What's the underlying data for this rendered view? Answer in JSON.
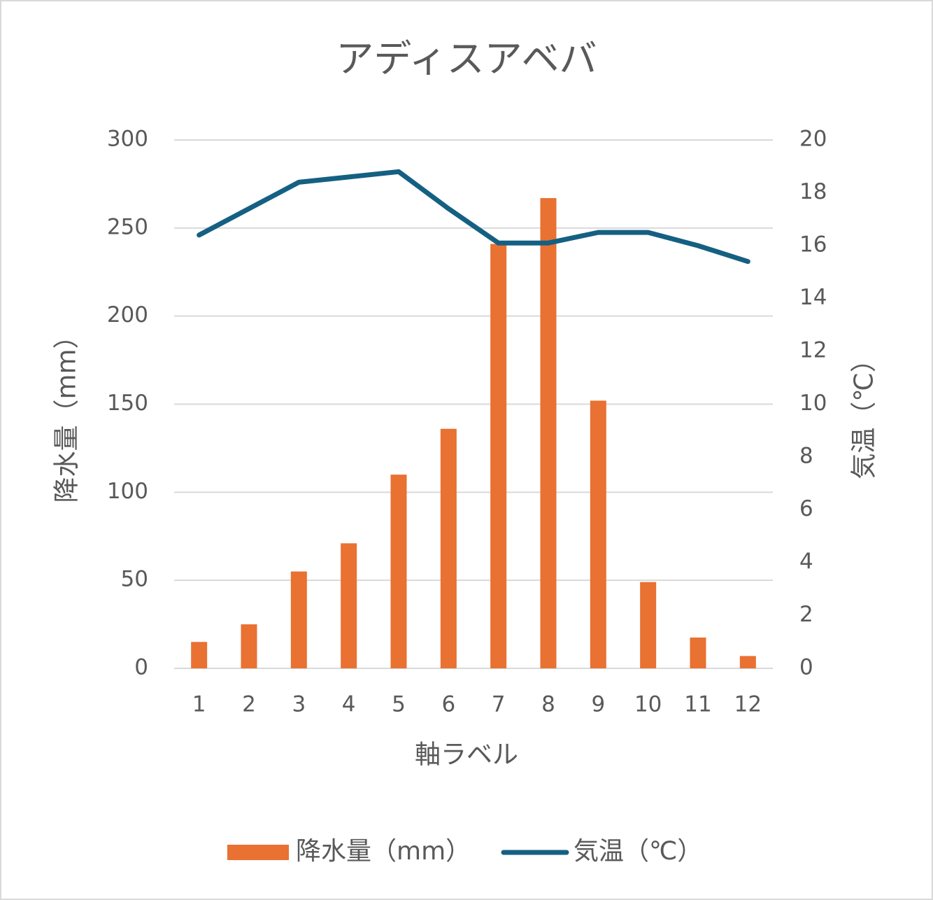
{
  "chart_data": {
    "type": "bar-line",
    "title": "アディスアベバ",
    "x_label": "軸ラベル",
    "y_label": "降水量（mm）",
    "y2_label": "気温（℃）",
    "categories": [
      "1",
      "2",
      "3",
      "4",
      "5",
      "6",
      "7",
      "8",
      "9",
      "10",
      "11",
      "12"
    ],
    "series": [
      {
        "name": "降水量（mm）",
        "type": "bar",
        "color": "#E97132",
        "values": [
          15,
          25,
          55,
          71,
          110,
          136,
          241,
          267,
          152,
          49,
          17.5,
          7
        ]
      },
      {
        "name": "気温（℃）",
        "type": "line",
        "axis": "y2",
        "color": "#156082",
        "values": [
          16.4,
          17.4,
          18.4,
          18.6,
          18.8,
          17.4,
          16.1,
          16.1,
          16.5,
          16.5,
          16.0,
          15.4
        ]
      }
    ],
    "ylim": [
      0,
      300
    ],
    "yticks": [
      0,
      50,
      100,
      150,
      200,
      250,
      300
    ],
    "y2lim": [
      0,
      20
    ],
    "y2ticks": [
      0,
      2,
      4,
      6,
      8,
      10,
      12,
      14,
      16,
      18,
      20
    ],
    "grid": true,
    "legend": "bottom"
  }
}
